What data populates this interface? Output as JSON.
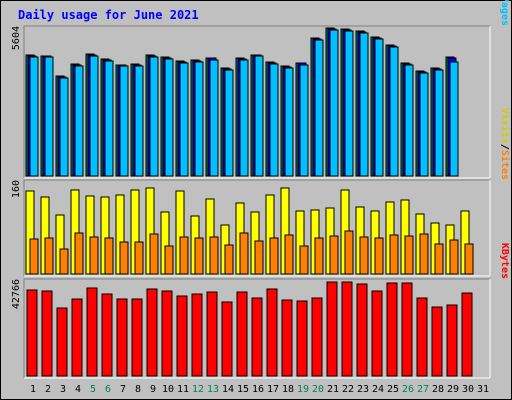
{
  "title": "Daily usage for June 2021",
  "colors": {
    "background": "#c0c0c0",
    "title": "#0000ff",
    "hits": "#00805c",
    "files": "#0000ff",
    "pages": "#00c0ff",
    "visits": "#ffff00",
    "sites": "#ff8000",
    "kbytes": "#ff0000",
    "weekend_label": "#00805c",
    "weekday_label": "#000000"
  },
  "chart_data": [
    {
      "type": "bar",
      "panel": "top",
      "ymax_label": "5604",
      "ylim": [
        0,
        5604
      ],
      "side_label": [
        "Pages",
        "Files",
        "Hits"
      ],
      "x": [
        "1",
        "2",
        "3",
        "4",
        "5",
        "6",
        "7",
        "8",
        "9",
        "10",
        "11",
        "12",
        "13",
        "14",
        "15",
        "16",
        "17",
        "18",
        "19",
        "20",
        "21",
        "22",
        "23",
        "24",
        "25",
        "26",
        "27",
        "28",
        "29",
        "30",
        "31"
      ],
      "weekend_days": [
        "5",
        "6",
        "12",
        "13",
        "19",
        "20",
        "26",
        "27"
      ],
      "series": [
        {
          "name": "Hits",
          "values": [
            4580,
            4560,
            3770,
            4240,
            4630,
            4440,
            4220,
            4250,
            4580,
            4500,
            4340,
            4390,
            4480,
            4090,
            4450,
            4600,
            4310,
            4170,
            4290,
            5210,
            5600,
            5560,
            5500,
            5250,
            4950,
            4280,
            3980,
            4080,
            4500,
            0,
            0
          ]
        },
        {
          "name": "Files",
          "values": [
            4560,
            4530,
            3740,
            4210,
            4600,
            4410,
            4190,
            4220,
            4550,
            4470,
            4310,
            4360,
            4450,
            4060,
            4420,
            4570,
            4280,
            4140,
            4260,
            5180,
            5570,
            5530,
            5470,
            5220,
            4920,
            4250,
            3950,
            4050,
            4470,
            0,
            0
          ]
        },
        {
          "name": "Pages",
          "values": [
            4520,
            4490,
            3700,
            4170,
            4560,
            4370,
            4150,
            4180,
            4510,
            4430,
            4270,
            4320,
            4410,
            4020,
            4380,
            4530,
            4240,
            4100,
            4220,
            5140,
            5530,
            5490,
            5430,
            5180,
            4880,
            4210,
            3910,
            4010,
            4310,
            0,
            0
          ]
        }
      ]
    },
    {
      "type": "bar",
      "panel": "middle",
      "ymax_label": "160",
      "ylim": [
        0,
        160
      ],
      "side_label": [
        "Sites",
        "Visits"
      ],
      "x": [
        "1",
        "2",
        "3",
        "4",
        "5",
        "6",
        "7",
        "8",
        "9",
        "10",
        "11",
        "12",
        "13",
        "14",
        "15",
        "16",
        "17",
        "18",
        "19",
        "20",
        "21",
        "22",
        "23",
        "24",
        "25",
        "26",
        "27",
        "28",
        "29",
        "30",
        "31"
      ],
      "series": [
        {
          "name": "Visits",
          "values": [
            145,
            134,
            102,
            146,
            136,
            134,
            138,
            146,
            150,
            107,
            144,
            101,
            130,
            85,
            124,
            107,
            137,
            150,
            110,
            111,
            115,
            146,
            116,
            110,
            126,
            129,
            104,
            89,
            86,
            110,
            0
          ]
        },
        {
          "name": "Sites",
          "values": [
            61,
            62,
            44,
            72,
            64,
            63,
            56,
            56,
            70,
            48,
            64,
            62,
            64,
            50,
            72,
            58,
            62,
            67,
            48,
            62,
            66,
            74,
            64,
            63,
            68,
            66,
            69,
            52,
            59,
            52,
            0
          ]
        }
      ]
    },
    {
      "type": "bar",
      "panel": "bottom",
      "ymax_label": "42766",
      "ylim": [
        0,
        42766
      ],
      "side_label": [
        "KBytes"
      ],
      "x": [
        "1",
        "2",
        "3",
        "4",
        "5",
        "6",
        "7",
        "8",
        "9",
        "10",
        "11",
        "12",
        "13",
        "14",
        "15",
        "16",
        "17",
        "18",
        "19",
        "20",
        "21",
        "22",
        "23",
        "24",
        "25",
        "26",
        "27",
        "28",
        "29",
        "30",
        "31"
      ],
      "series": [
        {
          "name": "KBytes",
          "values": [
            38900,
            38700,
            30900,
            34900,
            40200,
            37500,
            35100,
            35200,
            39500,
            38500,
            36300,
            37200,
            38000,
            33700,
            38300,
            35300,
            39600,
            34500,
            33900,
            35300,
            42700,
            42800,
            41900,
            38700,
            42300,
            42200,
            35500,
            31600,
            32200,
            37600,
            0
          ]
        }
      ]
    }
  ]
}
